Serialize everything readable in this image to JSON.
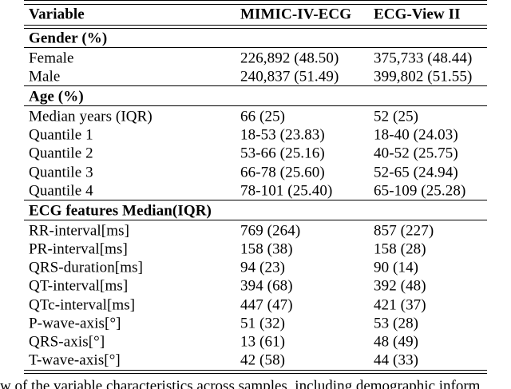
{
  "table": {
    "columns": [
      "Variable",
      "MIMIC-IV-ECG",
      "ECG-View II"
    ],
    "sections": [
      {
        "header": "Gender (%)",
        "rows": [
          {
            "cells": [
              "Female",
              "226,892 (48.50)",
              "375,733 (48.44)"
            ]
          },
          {
            "cells": [
              "Male",
              "240,837 (51.49)",
              "399,802 (51.55)"
            ]
          }
        ]
      },
      {
        "header": "Age (%)",
        "rows": [
          {
            "cells": [
              "Median years (IQR)",
              "66 (25)",
              "52 (25)"
            ]
          },
          {
            "cells": [
              "Quantile 1",
              "18-53 (23.83)",
              "18-40 (24.03)"
            ]
          },
          {
            "cells": [
              "Quantile 2",
              "53-66 (25.16)",
              "40-52 (25.75)"
            ]
          },
          {
            "cells": [
              "Quantile 3",
              "66-78 (25.60)",
              "52-65 (24.94)"
            ]
          },
          {
            "cells": [
              "Quantile 4",
              "78-101 (25.40)",
              "65-109 (25.28)"
            ]
          }
        ]
      },
      {
        "header": "ECG features Median(IQR)",
        "rows": [
          {
            "cells": [
              "RR-interval[ms]",
              "769 (264)",
              "857 (227)"
            ]
          },
          {
            "cells": [
              "PR-interval[ms]",
              "158 (38)",
              "158 (28)"
            ]
          },
          {
            "cells": [
              "QRS-duration[ms]",
              "94 (23)",
              "90 (14)"
            ]
          },
          {
            "cells": [
              "QT-interval[ms]",
              "394 (68)",
              "392 (48)"
            ]
          },
          {
            "cells": [
              "QTc-interval[ms]",
              "447 (47)",
              "421 (37)"
            ]
          },
          {
            "cells": [
              "P-wave-axis[°]",
              "51 (32)",
              "53 (28)"
            ]
          },
          {
            "cells": [
              "QRS-axis[°]",
              "13 (61)",
              "48 (49)"
            ]
          },
          {
            "cells": [
              "T-wave-axis[°]",
              "42 (58)",
              "44 (33)"
            ]
          }
        ]
      }
    ]
  },
  "caption": {
    "visible_text": "w of the variable characteristics across samples, including demographic inform"
  },
  "colors": {
    "text": "#000000",
    "background": "#ffffff",
    "rule": "#000000"
  }
}
